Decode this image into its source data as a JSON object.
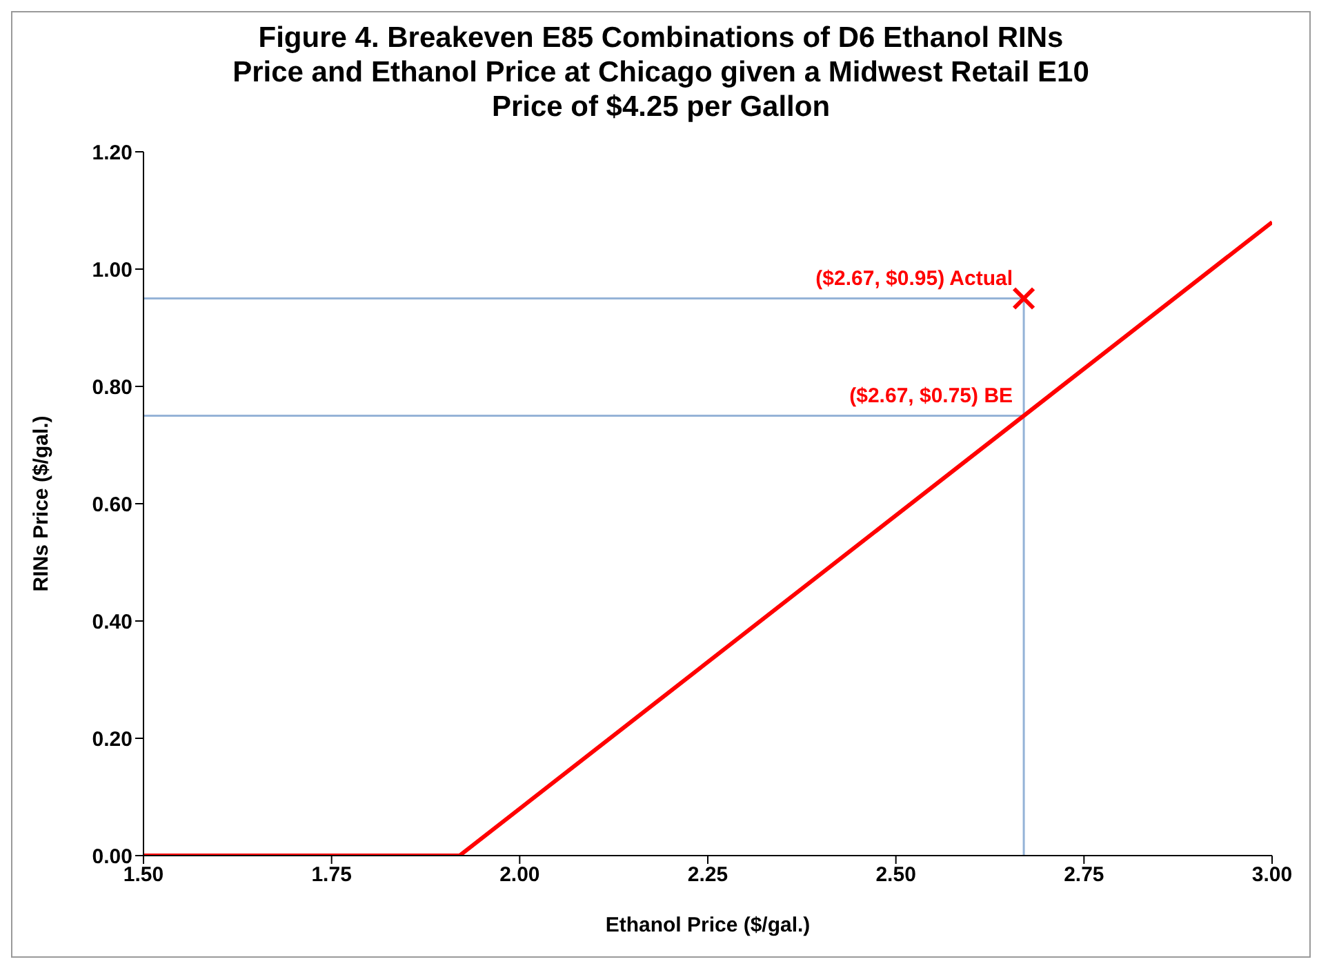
{
  "chart_data": {
    "type": "line",
    "title": "Figure 4. Breakeven E85 Combinations of D6 Ethanol RINs\nPrice and Ethanol Price at Chicago given a Midwest Retail E10\nPrice of $4.25 per Gallon",
    "xlabel": "Ethanol Price ($/gal.)",
    "ylabel": "RINs Price ($/gal.)",
    "series": [
      {
        "color": "#95b3d7",
        "x": [
          1.5,
          2.67,
          2.67
        ],
        "values": [
          0.95,
          0.95,
          0
        ]
      },
      {
        "color": "#95b3d7",
        "x": [
          1.5,
          2.67
        ],
        "values": [
          0.75,
          0.75
        ]
      },
      {
        "color": "#ff0000",
        "x": [
          1.5,
          1.92,
          3.0
        ],
        "values": [
          0,
          0,
          1.08
        ]
      },
      {
        "type": "scatter",
        "marker": "cross",
        "color": "#ff0000",
        "x": [
          2.67
        ],
        "values": [
          0.95
        ]
      }
    ],
    "annotations": [
      {
        "text": "($2.67, $0.95) Actual",
        "x": 2.67,
        "y": 0.95
      },
      {
        "text": "($2.67, $0.75) BE",
        "x": 2.67,
        "y": 0.75
      }
    ],
    "xlim": [
      1.5,
      3.0
    ],
    "xticks": [
      {
        "value": 1.5,
        "label": "1.50"
      },
      {
        "value": 1.75,
        "label": "1.75"
      },
      {
        "value": 2.0,
        "label": "2.00"
      },
      {
        "value": 2.25,
        "label": "2.25"
      },
      {
        "value": 2.5,
        "label": "2.50"
      },
      {
        "value": 2.75,
        "label": "2.75"
      },
      {
        "value": 3.0,
        "label": "3.00"
      }
    ],
    "ylim": [
      0,
      1.2
    ],
    "yticks": [
      {
        "value": 0,
        "label": "0.00"
      },
      {
        "value": 0.2,
        "label": "0.20"
      },
      {
        "value": 0.4,
        "label": "0.40"
      },
      {
        "value": 0.6,
        "label": "0.60"
      },
      {
        "value": 0.8,
        "label": "0.80"
      },
      {
        "value": 1.0,
        "label": "1.00"
      },
      {
        "value": 1.2,
        "label": "1.20"
      }
    ],
    "grid": false,
    "legend": false,
    "marker": "none",
    "line_style": "solid"
  }
}
